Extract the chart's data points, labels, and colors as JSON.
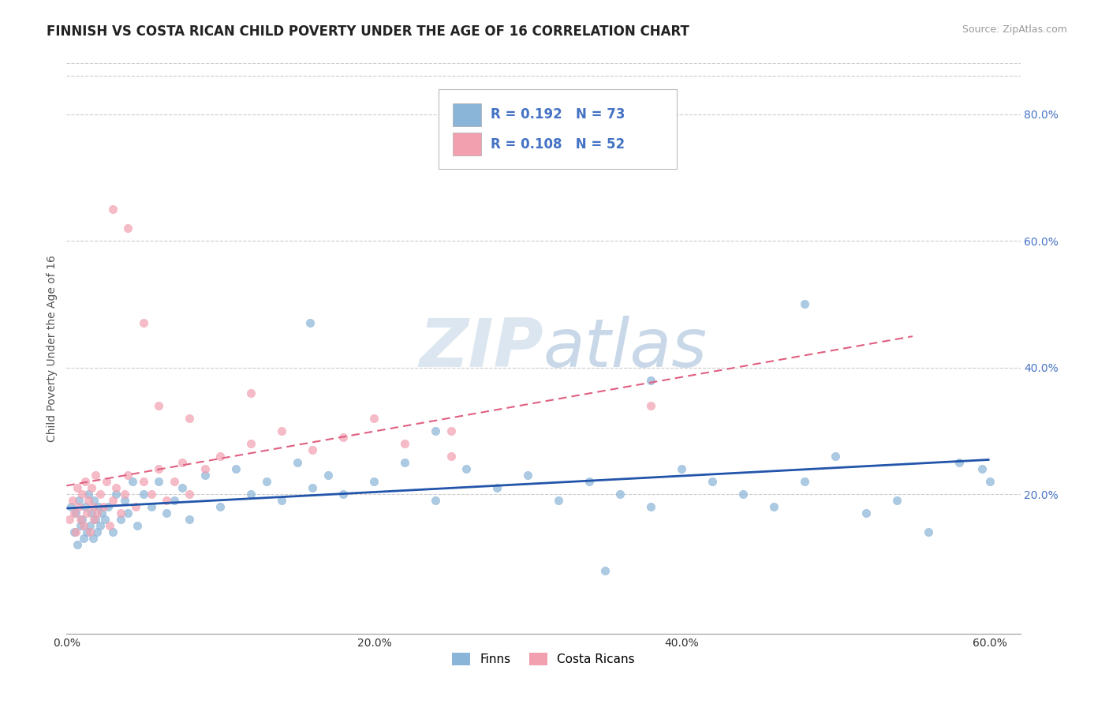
{
  "title": "FINNISH VS COSTA RICAN CHILD POVERTY UNDER THE AGE OF 16 CORRELATION CHART",
  "source": "Source: ZipAtlas.com",
  "ylabel": "Child Poverty Under the Age of 16",
  "xlim": [
    0.0,
    0.62
  ],
  "ylim": [
    -0.02,
    0.88
  ],
  "xtick_labels": [
    "0.0%",
    "20.0%",
    "40.0%",
    "60.0%"
  ],
  "xtick_vals": [
    0.0,
    0.2,
    0.4,
    0.6
  ],
  "ytick_labels": [
    "20.0%",
    "40.0%",
    "60.0%",
    "80.0%"
  ],
  "ytick_vals": [
    0.2,
    0.4,
    0.6,
    0.8
  ],
  "background_color": "#ffffff",
  "grid_color": "#cccccc",
  "finn_color": "#8ab4d8",
  "cr_color": "#f2a0b0",
  "finn_line_color": "#2255aa",
  "cr_line_color": "#e06080",
  "watermark_color": "#dce6f0",
  "finns_x": [
    0.003,
    0.005,
    0.006,
    0.007,
    0.008,
    0.009,
    0.01,
    0.011,
    0.012,
    0.013,
    0.014,
    0.015,
    0.016,
    0.017,
    0.018,
    0.019,
    0.02,
    0.021,
    0.022,
    0.023,
    0.025,
    0.027,
    0.03,
    0.032,
    0.035,
    0.038,
    0.04,
    0.043,
    0.046,
    0.05,
    0.055,
    0.06,
    0.065,
    0.07,
    0.075,
    0.08,
    0.09,
    0.1,
    0.11,
    0.12,
    0.13,
    0.14,
    0.15,
    0.16,
    0.17,
    0.18,
    0.2,
    0.22,
    0.24,
    0.26,
    0.28,
    0.3,
    0.32,
    0.34,
    0.36,
    0.38,
    0.4,
    0.42,
    0.44,
    0.46,
    0.48,
    0.5,
    0.52,
    0.54,
    0.56,
    0.58,
    0.595,
    0.158,
    0.24,
    0.38,
    0.48,
    0.35,
    0.6
  ],
  "finns_y": [
    0.18,
    0.14,
    0.17,
    0.12,
    0.19,
    0.15,
    0.16,
    0.13,
    0.18,
    0.14,
    0.2,
    0.15,
    0.17,
    0.13,
    0.19,
    0.16,
    0.14,
    0.18,
    0.15,
    0.17,
    0.16,
    0.18,
    0.14,
    0.2,
    0.16,
    0.19,
    0.17,
    0.22,
    0.15,
    0.2,
    0.18,
    0.22,
    0.17,
    0.19,
    0.21,
    0.16,
    0.23,
    0.18,
    0.24,
    0.2,
    0.22,
    0.19,
    0.25,
    0.21,
    0.23,
    0.2,
    0.22,
    0.25,
    0.19,
    0.24,
    0.21,
    0.23,
    0.19,
    0.22,
    0.2,
    0.18,
    0.24,
    0.22,
    0.2,
    0.18,
    0.22,
    0.26,
    0.17,
    0.19,
    0.14,
    0.25,
    0.24,
    0.47,
    0.3,
    0.38,
    0.5,
    0.08,
    0.22
  ],
  "cr_x": [
    0.002,
    0.004,
    0.005,
    0.006,
    0.007,
    0.008,
    0.009,
    0.01,
    0.011,
    0.012,
    0.013,
    0.014,
    0.015,
    0.016,
    0.017,
    0.018,
    0.019,
    0.02,
    0.022,
    0.024,
    0.026,
    0.028,
    0.03,
    0.032,
    0.035,
    0.038,
    0.04,
    0.045,
    0.05,
    0.055,
    0.06,
    0.065,
    0.07,
    0.075,
    0.08,
    0.09,
    0.1,
    0.12,
    0.14,
    0.16,
    0.18,
    0.2,
    0.22,
    0.25,
    0.03,
    0.04,
    0.05,
    0.06,
    0.08,
    0.12,
    0.25,
    0.38
  ],
  "cr_y": [
    0.16,
    0.19,
    0.17,
    0.14,
    0.21,
    0.18,
    0.16,
    0.2,
    0.15,
    0.22,
    0.17,
    0.19,
    0.14,
    0.21,
    0.18,
    0.16,
    0.23,
    0.17,
    0.2,
    0.18,
    0.22,
    0.15,
    0.19,
    0.21,
    0.17,
    0.2,
    0.23,
    0.18,
    0.22,
    0.2,
    0.24,
    0.19,
    0.22,
    0.25,
    0.2,
    0.24,
    0.26,
    0.28,
    0.3,
    0.27,
    0.29,
    0.32,
    0.28,
    0.3,
    0.65,
    0.62,
    0.47,
    0.34,
    0.32,
    0.36,
    0.26,
    0.34
  ]
}
